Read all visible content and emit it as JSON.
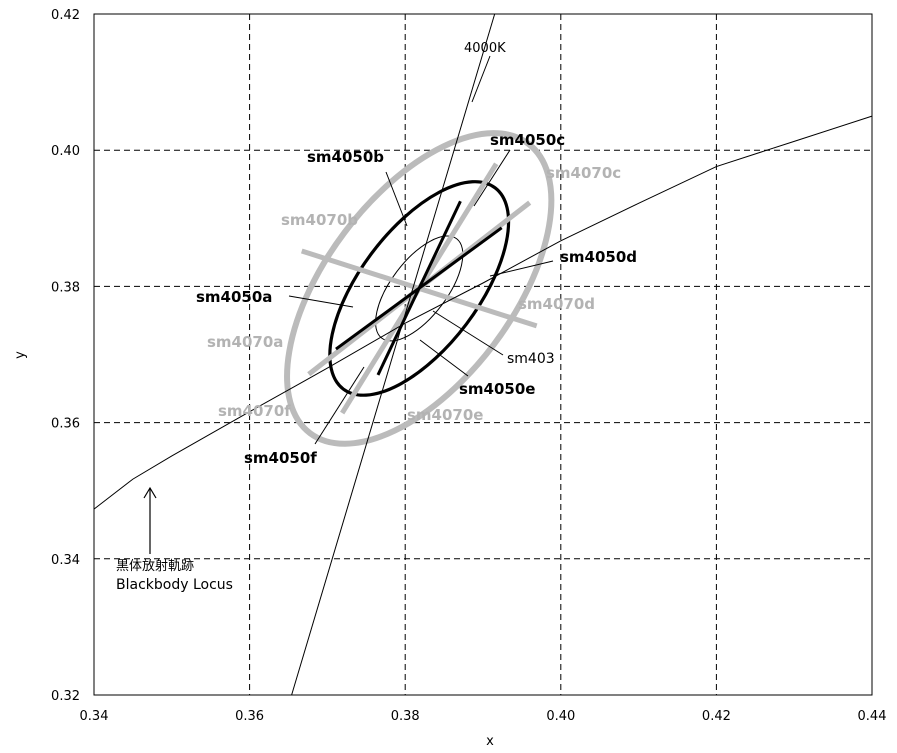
{
  "chart_data": {
    "type": "scatter",
    "title": "",
    "xlabel": "x",
    "ylabel": "y",
    "xlim": [
      0.34,
      0.44
    ],
    "ylim": [
      0.32,
      0.42
    ],
    "grid": true,
    "x_ticks": [
      "0.34",
      "0.36",
      "0.38",
      "0.40",
      "0.42",
      "0.44"
    ],
    "y_ticks": [
      "0.32",
      "0.34",
      "0.36",
      "0.38",
      "0.40",
      "0.42"
    ],
    "x_tick_values": [
      0.34,
      0.36,
      0.38,
      0.4,
      0.42,
      0.44
    ],
    "y_tick_values": [
      0.32,
      0.34,
      0.36,
      0.38,
      0.4,
      0.42
    ],
    "colors": {
      "sm4050": "#000000",
      "sm4070": "#bbbbbb",
      "sm403": "#000000",
      "curves": "#000000"
    },
    "blackbody_locus": {
      "x": [
        0.34,
        0.345,
        0.35,
        0.36,
        0.37,
        0.38,
        0.39,
        0.4,
        0.41,
        0.42,
        0.43,
        0.44
      ],
      "y": [
        0.3473,
        0.3517,
        0.3551,
        0.3616,
        0.368,
        0.3746,
        0.3805,
        0.3867,
        0.3922,
        0.3976,
        0.4013,
        0.405
      ]
    },
    "cct_line": {
      "x": [
        0.3654,
        0.3915
      ],
      "y": [
        0.32,
        0.42
      ]
    },
    "center": [
      0.3818,
      0.3797
    ],
    "ellipses": [
      {
        "name": "sm4070",
        "semi_major": 0.0233,
        "semi_minor": 0.012,
        "angle_deg": 53.0,
        "style": "thick-gray"
      },
      {
        "name": "sm4050",
        "semi_major": 0.0162,
        "semi_minor": 0.0076,
        "angle_deg": 53.0,
        "style": "thick-black"
      },
      {
        "name": "sm403",
        "semi_major": 0.008,
        "semi_minor": 0.0036,
        "angle_deg": 53.0,
        "style": "thin-black"
      }
    ],
    "quadrangle_lines": [
      {
        "x": [
          0.3711,
          0.3924
        ],
        "y": [
          0.3708,
          0.3886
        ],
        "style": "black"
      },
      {
        "x": [
          0.3765,
          0.3871
        ],
        "y": [
          0.367,
          0.3925
        ],
        "style": "black"
      },
      {
        "x": [
          0.3667,
          0.3969
        ],
        "y": [
          0.3852,
          0.3742
        ],
        "style": "gray"
      },
      {
        "x": [
          0.3676,
          0.396
        ],
        "y": [
          0.3671,
          0.3923
        ],
        "style": "gray"
      },
      {
        "x": [
          0.3719,
          0.3917
        ],
        "y": [
          0.3614,
          0.398
        ],
        "style": "gray"
      }
    ],
    "labels": {
      "sm4050a": "sm4050a",
      "sm4050b": "sm4050b",
      "sm4050c": "sm4050c",
      "sm4050d": "sm4050d",
      "sm4050e": "sm4050e",
      "sm4050f": "sm4050f",
      "sm4070a": "sm4070a",
      "sm4070b": "sm4070b",
      "sm4070c": "sm4070c",
      "sm4070d": "sm4070d",
      "sm4070e": "sm4070e",
      "sm4070f": "sm4070f",
      "sm403": "sm403",
      "cct": "4000K",
      "locus_jp": "黒体放射軌跡",
      "locus_en": "Blackbody Locus"
    }
  }
}
